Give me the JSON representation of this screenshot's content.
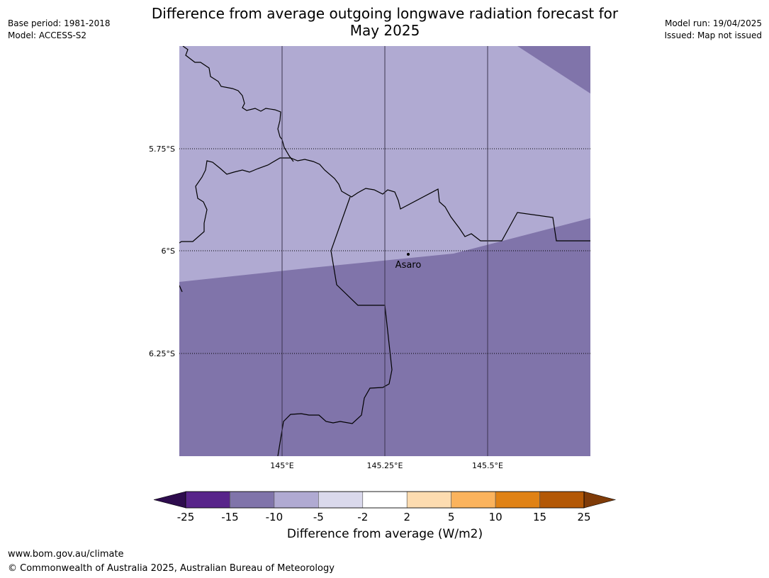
{
  "header": {
    "title_line1": "Difference from average outgoing longwave radiation forecast for",
    "title_line2": "May 2025",
    "base_period": "Base period: 1981-2018",
    "model": "Model: ACCESS-S2",
    "model_run": "Model run: 19/04/2025",
    "issued": "Issued: Map not issued"
  },
  "map": {
    "lat_labels": [
      "5.75°S",
      "6°S",
      "6.25°S"
    ],
    "lon_labels": [
      "145°E",
      "145.25°E",
      "145.5°E"
    ],
    "place": {
      "name": "Asaro"
    },
    "fill_colors": {
      "light_category": "#b0aad2",
      "dark_category": "#8074aa"
    }
  },
  "colorbar": {
    "ticks": [
      "-25",
      "-15",
      "-10",
      "-5",
      "-2",
      "2",
      "5",
      "10",
      "15",
      "25"
    ],
    "colors": [
      "#2e0c4e",
      "#58248a",
      "#8074aa",
      "#b0aad2",
      "#dad9ec",
      "#ffffff",
      "#fddcb0",
      "#fbb35d",
      "#e08215",
      "#b35806",
      "#7f3b08"
    ],
    "label": "Difference from average (W/m2)"
  },
  "footer": {
    "url": "www.bom.gov.au/climate",
    "copyright": "© Commonwealth of Australia 2025, Australian Bureau of Meteorology"
  }
}
